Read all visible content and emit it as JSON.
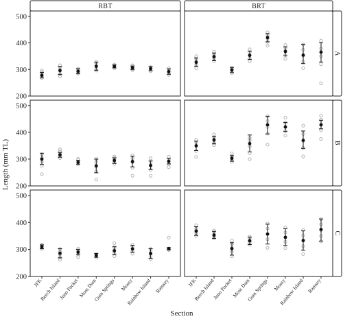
{
  "chart_data": {
    "type": "scatter",
    "subtype": "point-range facet grid",
    "xlabel": "Section",
    "ylabel": "Length (mm TL)",
    "ylim": [
      200,
      520
    ],
    "yticks": [
      200,
      300,
      400,
      500
    ],
    "categories": [
      "JFK",
      "Beech Island",
      "Juno Pocket",
      "Moss Dam",
      "Gum Springs",
      "Mossy",
      "Rainbow Island",
      "Ramsey"
    ],
    "columns": [
      "RBT",
      "BRT"
    ],
    "rows": [
      "A",
      "B",
      "C"
    ],
    "grid": false,
    "colors": {
      "mean": "#111111",
      "raw": "#b3b3b3",
      "strip_fill": "#ffffff",
      "frame": "#222222"
    },
    "panels": [
      {
        "column": "RBT",
        "row": "A",
        "mean": [
          278,
          296,
          293,
          312,
          312,
          306,
          303,
          292
        ],
        "lower": [
          268,
          281,
          284,
          297,
          306,
          300,
          295,
          282
        ],
        "upper": [
          289,
          312,
          303,
          328,
          317,
          313,
          311,
          302
        ],
        "raw": [
          [
            268,
            273,
            283,
            291,
            296
          ],
          [
            274,
            283,
            296,
            307,
            316
          ],
          [
            285,
            288,
            294,
            299,
            303
          ],
          [
            296,
            301,
            312,
            321,
            328
          ],
          [
            305,
            309,
            314,
            318
          ],
          [
            298,
            302,
            308,
            312,
            316
          ],
          [
            294,
            300,
            304,
            309
          ],
          [
            280,
            286,
            292,
            299,
            305
          ]
        ]
      },
      {
        "column": "BRT",
        "row": "A",
        "mean": [
          327,
          348,
          298,
          353,
          420,
          368,
          354,
          365
        ],
        "lower": [
          312,
          333,
          288,
          338,
          404,
          351,
          322,
          328
        ],
        "upper": [
          343,
          362,
          308,
          369,
          435,
          385,
          395,
          400
        ],
        "raw": [
          [
            305,
            318,
            330,
            341,
            350
          ],
          [
            332,
            341,
            349,
            357,
            367
          ],
          [
            287,
            294,
            300,
            306
          ],
          [
            331,
            341,
            353,
            365,
            376
          ],
          [
            390,
            404,
            417,
            428,
            440
          ],
          [
            340,
            354,
            368,
            381,
            392
          ],
          [
            305,
            330,
            352,
            374,
            394
          ],
          [
            248,
            320,
            350,
            378,
            408
          ]
        ]
      },
      {
        "column": "RBT",
        "row": "B",
        "mean": [
          300,
          316,
          288,
          275,
          295,
          291,
          276,
          292
        ],
        "lower": [
          280,
          307,
          280,
          249,
          284,
          271,
          261,
          282
        ],
        "upper": [
          322,
          325,
          296,
          300,
          305,
          311,
          293,
          303
        ],
        "raw": [
          [
            244,
            275,
            291,
            304,
            318
          ],
          [
            304,
            312,
            319,
            328,
            336
          ],
          [
            282,
            288,
            296,
            301
          ],
          [
            224,
            254,
            272,
            290,
            301
          ],
          [
            282,
            289,
            298,
            305,
            310
          ],
          [
            238,
            268,
            289,
            303,
            314
          ],
          [
            238,
            260,
            278,
            290,
            303
          ],
          [
            270,
            281,
            290,
            299,
            309
          ]
        ]
      },
      {
        "column": "BRT",
        "row": "B",
        "mean": [
          350,
          372,
          303,
          358,
          428,
          420,
          370,
          428
        ],
        "lower": [
          332,
          357,
          292,
          327,
          394,
          403,
          340,
          413
        ],
        "upper": [
          367,
          385,
          313,
          390,
          460,
          437,
          405,
          445
        ],
        "raw": [
          [
            308,
            330,
            349,
            362,
            372
          ],
          [
            352,
            361,
            370,
            382,
            392
          ],
          [
            290,
            297,
            304,
            312,
            321
          ],
          [
            300,
            322,
            348,
            370,
            380
          ],
          [
            354,
            395,
            420,
            442,
            460
          ],
          [
            388,
            405,
            420,
            436,
            455
          ],
          [
            310,
            342,
            368,
            394,
            425
          ],
          [
            375,
            408,
            428,
            447,
            462
          ]
        ]
      },
      {
        "column": "RBT",
        "row": "C",
        "mean": [
          310,
          286,
          290,
          278,
          295,
          302,
          285,
          303
        ],
        "lower": [
          303,
          269,
          280,
          271,
          281,
          290,
          267,
          299
        ],
        "upper": [
          317,
          303,
          300,
          285,
          310,
          315,
          303,
          307
        ],
        "raw": [
          [
            302,
            306,
            311,
            315,
            318
          ],
          [
            262,
            270,
            282,
            292,
            302
          ],
          [
            272,
            282,
            290,
            297,
            303
          ],
          [
            270,
            275,
            280,
            284
          ],
          [
            275,
            287,
            297,
            308,
            323
          ],
          [
            284,
            293,
            302,
            311,
            318
          ],
          [
            264,
            276,
            285,
            294,
            303
          ],
          [
            298,
            301,
            304,
            344
          ]
        ]
      },
      {
        "column": "BRT",
        "row": "C",
        "mean": [
          368,
          353,
          303,
          332,
          357,
          345,
          333,
          374
        ],
        "lower": [
          352,
          341,
          279,
          318,
          320,
          315,
          297,
          331
        ],
        "upper": [
          384,
          367,
          325,
          346,
          394,
          377,
          369,
          413
        ],
        "raw": [
          [
            350,
            360,
            368,
            377,
            390
          ],
          [
            341,
            349,
            355,
            362,
            370
          ],
          [
            275,
            292,
            305,
            318,
            333
          ],
          [
            318,
            326,
            333,
            341,
            347
          ],
          [
            306,
            338,
            357,
            378,
            396
          ],
          [
            305,
            328,
            345,
            363,
            382
          ],
          [
            283,
            312,
            333,
            352,
            372
          ],
          [
            330,
            350,
            372,
            393,
            412
          ]
        ]
      }
    ]
  }
}
